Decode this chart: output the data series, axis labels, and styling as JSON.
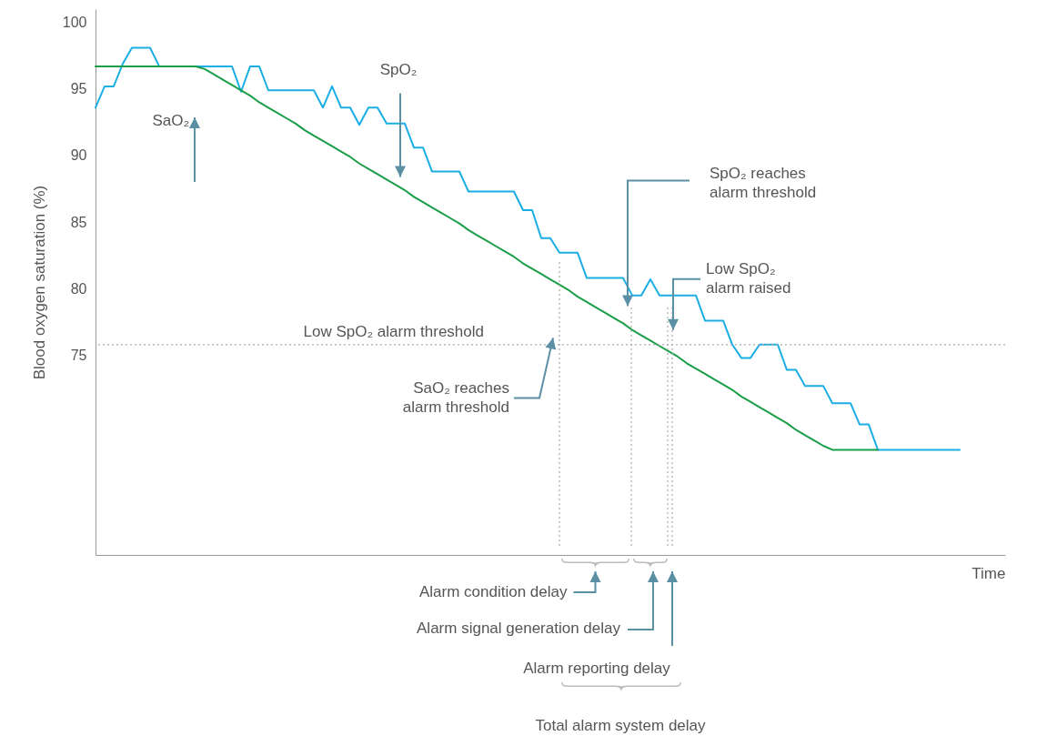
{
  "chart_data": {
    "type": "line",
    "ylabel": "Blood oxygen saturation (%)",
    "xlabel": "Time",
    "ylim": [
      60,
      101
    ],
    "yticks": [
      75,
      80,
      85,
      90,
      95,
      100
    ],
    "tick_labels": "y",
    "grid": false,
    "categories": [
      null,
      null,
      null,
      null,
      null,
      null,
      null,
      null,
      null,
      null,
      null,
      null,
      null,
      null,
      null,
      null,
      null,
      null,
      null,
      null,
      null,
      null,
      null,
      null,
      null,
      null,
      null,
      null,
      null,
      null,
      null,
      null,
      null,
      null,
      null,
      null,
      null,
      null,
      null,
      null,
      null,
      null,
      null,
      null,
      null,
      null,
      null,
      null,
      null,
      null,
      null,
      null,
      null,
      null,
      null,
      null,
      null,
      null,
      null,
      null,
      null,
      null,
      null,
      null,
      null,
      null,
      null,
      null,
      null,
      null,
      null,
      null,
      null,
      null,
      null,
      null,
      null,
      null,
      null,
      null,
      null,
      null,
      null,
      null,
      null,
      null,
      null,
      null,
      null,
      null,
      null,
      null,
      null,
      null,
      null,
      null,
      null,
      null,
      null,
      null,
      null
    ],
    "series": [
      {
        "name": "SpO₂",
        "color": "#1aaee5",
        "values": [
          93.6,
          95.2,
          95.2,
          96.9,
          98.1,
          98.1,
          98.1,
          96.7,
          96.7,
          96.7,
          96.7,
          96.7,
          96.7,
          96.7,
          96.7,
          96.7,
          94.8,
          96.7,
          96.7,
          94.9,
          94.9,
          94.9,
          94.9,
          94.9,
          94.9,
          93.6,
          95.2,
          93.6,
          93.6,
          92.3,
          93.6,
          93.6,
          92.4,
          92.4,
          92.4,
          90.6,
          90.6,
          88.8,
          88.8,
          88.8,
          88.8,
          87.3,
          87.3,
          87.3,
          87.3,
          87.3,
          87.3,
          85.9,
          85.9,
          83.8,
          83.8,
          82.7,
          82.7,
          82.7,
          80.8,
          80.8,
          80.8,
          80.8,
          80.8,
          79.5,
          79.5,
          80.7,
          79.5,
          79.5,
          79.5,
          79.5,
          79.5,
          77.6,
          77.6,
          77.6,
          75.8,
          74.8,
          74.8,
          75.8,
          75.8,
          75.8,
          73.9,
          73.9,
          72.7,
          72.7,
          72.7,
          71.4,
          71.4,
          71.4,
          69.8,
          69.8,
          67.9,
          67.9,
          67.9,
          67.9,
          67.9,
          67.9,
          67.9,
          67.9,
          67.9,
          67.9,
          null,
          null,
          null,
          null,
          null
        ]
      },
      {
        "name": "SaO₂",
        "color": "#1a9e48",
        "values": [
          96.7,
          96.7,
          96.7,
          96.7,
          96.7,
          96.7,
          96.7,
          96.7,
          96.7,
          96.7,
          96.7,
          96.7,
          96.5,
          96.1,
          95.7,
          95.3,
          94.9,
          94.5,
          94.0,
          93.6,
          93.2,
          92.8,
          92.4,
          91.9,
          91.5,
          91.1,
          90.7,
          90.3,
          89.9,
          89.4,
          89.0,
          88.6,
          88.2,
          87.8,
          87.4,
          86.9,
          86.5,
          86.1,
          85.7,
          85.3,
          84.9,
          84.4,
          84.0,
          83.6,
          83.2,
          82.8,
          82.4,
          81.9,
          81.5,
          81.1,
          80.7,
          80.3,
          79.9,
          79.4,
          79.0,
          78.6,
          78.2,
          77.8,
          77.4,
          76.9,
          76.5,
          76.1,
          75.7,
          75.3,
          74.9,
          74.4,
          74.0,
          73.6,
          73.2,
          72.8,
          72.4,
          71.9,
          71.5,
          71.1,
          70.7,
          70.3,
          69.9,
          69.4,
          69.0,
          68.6,
          68.2,
          67.9,
          67.9,
          67.9,
          67.9,
          67.9,
          67.9,
          null,
          null,
          null,
          null,
          null,
          null,
          null,
          null,
          null,
          null,
          null,
          null,
          null,
          null
        ]
      }
    ],
    "ref_lines": [
      {
        "axis": "y",
        "value": 75.8,
        "label": "Low SpO₂ alarm threshold",
        "line_style": "dotted",
        "color": "#aaaaaa"
      }
    ],
    "annotations": [
      "SpO₂ reaches alarm threshold",
      "Low SpO₂ alarm raised",
      "SaO₂ reaches alarm threshold",
      "Alarm condition delay",
      "Alarm signal generation delay",
      "Alarm reporting delay",
      "Total alarm system delay"
    ]
  }
}
